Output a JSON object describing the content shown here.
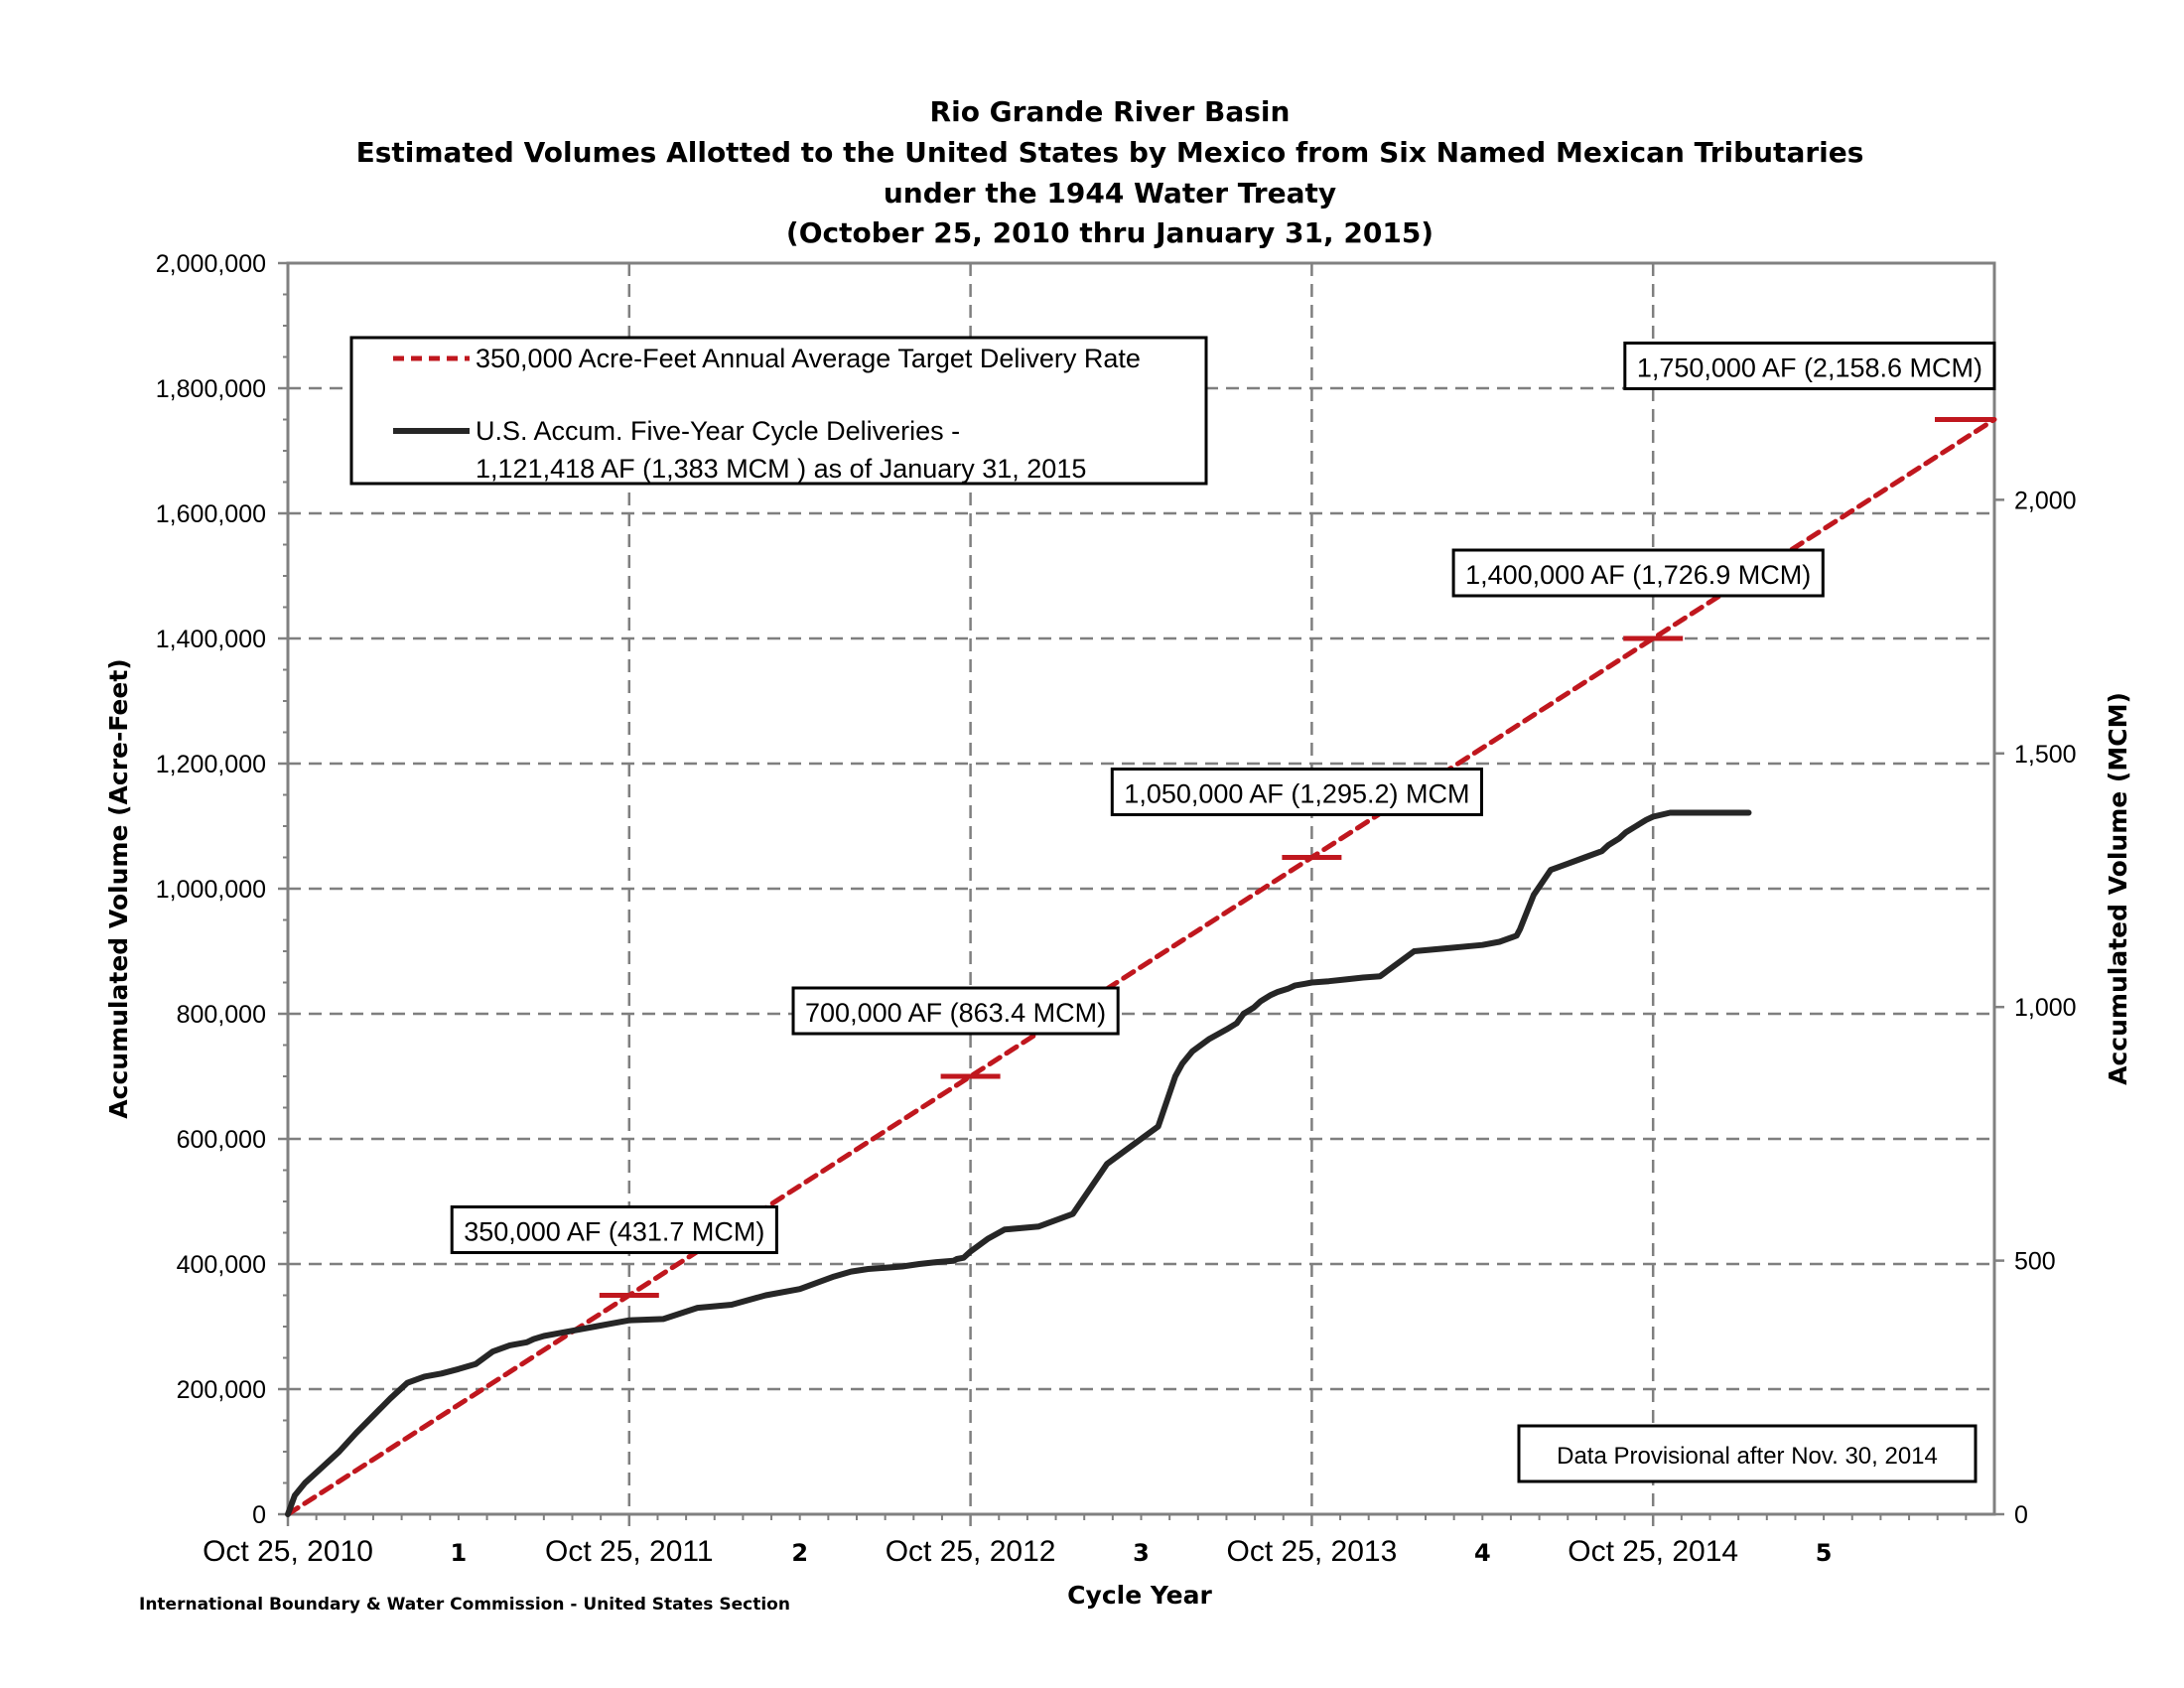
{
  "chart_data": {
    "type": "line",
    "title": [
      "Rio Grande River Basin",
      "Estimated Volumes Allotted to the United States by Mexico from Six Named Mexican Tributaries",
      "under the 1944 Water Treaty",
      "(October 25, 2010 thru January 31, 2015)"
    ],
    "xlabel": "Cycle Year",
    "ylabel": "Accumulated Volume (Acre-Feet)",
    "ylabel_right": "Accumulated Volume (MCM)",
    "ylim": [
      0,
      2000000
    ],
    "yticks": [
      "0",
      "200,000",
      "400,000",
      "600,000",
      "800,000",
      "1,000,000",
      "1,200,000",
      "1,400,000",
      "1,600,000",
      "1,800,000",
      "2,000,000"
    ],
    "ylim_right": [
      0,
      2466.6
    ],
    "yticks_right": [
      {
        "v": 0,
        "label": "0"
      },
      {
        "v": 500,
        "label": "500"
      },
      {
        "v": 1000,
        "label": "1,000"
      },
      {
        "v": 1500,
        "label": "1,500"
      },
      {
        "v": 2000,
        "label": "2,000"
      }
    ],
    "xlim": [
      0,
      5
    ],
    "xticks": [
      {
        "x": 0,
        "label": "Oct 25, 2010"
      },
      {
        "x": 1,
        "label": "Oct 25, 2011"
      },
      {
        "x": 2,
        "label": "Oct 25, 2012"
      },
      {
        "x": 3,
        "label": "Oct 25, 2013"
      },
      {
        "x": 4,
        "label": "Oct 25, 2014"
      }
    ],
    "cycle_labels": [
      {
        "x": 0.5,
        "label": "1"
      },
      {
        "x": 1.5,
        "label": "2"
      },
      {
        "x": 2.5,
        "label": "3"
      },
      {
        "x": 3.5,
        "label": "4"
      },
      {
        "x": 4.5,
        "label": "5"
      }
    ],
    "grid": true,
    "legend": {
      "placement": "top-left",
      "entries": [
        "350,000 Acre-Feet Annual Average Target Delivery Rate",
        "U.S. Accum. Five-Year Cycle Deliveries -",
        "1,121,418 AF (1,383 MCM ) as of January 31, 2015"
      ]
    },
    "series": [
      {
        "name": "350,000 Acre-Feet Annual Average Target Delivery Rate",
        "style": "dashed",
        "color": "#c0171e",
        "x": [
          0,
          5
        ],
        "y": [
          0,
          1750000
        ]
      },
      {
        "name": "U.S. Accum. Five-Year Cycle Deliveries",
        "style": "solid",
        "color": "#262626",
        "x": [
          0,
          0.02,
          0.05,
          0.1,
          0.15,
          0.2,
          0.3,
          0.35,
          0.4,
          0.45,
          0.5,
          0.55,
          0.6,
          0.65,
          0.7,
          0.72,
          0.75,
          0.8,
          0.85,
          0.9,
          0.95,
          1.0,
          1.1,
          1.2,
          1.3,
          1.4,
          1.5,
          1.6,
          1.65,
          1.7,
          1.8,
          1.85,
          1.9,
          1.95,
          1.96,
          1.98,
          2.0,
          2.05,
          2.1,
          2.2,
          2.3,
          2.4,
          2.5,
          2.55,
          2.6,
          2.62,
          2.65,
          2.7,
          2.75,
          2.78,
          2.8,
          2.83,
          2.85,
          2.88,
          2.9,
          2.93,
          2.95,
          2.98,
          3.0,
          3.05,
          3.1,
          3.15,
          3.2,
          3.3,
          3.4,
          3.5,
          3.55,
          3.6,
          3.61,
          3.65,
          3.7,
          3.75,
          3.8,
          3.85,
          3.87,
          3.9,
          3.92,
          3.95,
          3.98,
          4.0,
          4.05,
          4.1,
          4.15,
          4.2,
          4.25,
          4.28
        ],
        "y": [
          0,
          30000,
          50000,
          75000,
          100000,
          130000,
          185000,
          210000,
          220000,
          225000,
          232000,
          240000,
          260000,
          270000,
          275000,
          280000,
          285000,
          290000,
          295000,
          300000,
          305000,
          310000,
          312000,
          330000,
          335000,
          350000,
          360000,
          380000,
          388000,
          392000,
          396000,
          400000,
          403000,
          405000,
          408000,
          410000,
          420000,
          440000,
          455000,
          460000,
          480000,
          560000,
          600000,
          620000,
          700000,
          720000,
          740000,
          760000,
          775000,
          785000,
          800000,
          810000,
          820000,
          830000,
          835000,
          840000,
          845000,
          848000,
          850000,
          852000,
          855000,
          858000,
          860000,
          900000,
          905000,
          910000,
          915000,
          925000,
          935000,
          990000,
          1030000,
          1040000,
          1050000,
          1060000,
          1070000,
          1080000,
          1090000,
          1100000,
          1110000,
          1115000,
          1121418,
          1121418,
          1121418,
          1121418,
          1121418,
          1121418
        ]
      }
    ],
    "targets": [
      {
        "x": 1,
        "y": 350000,
        "label": "350,000 AF (431.7 MCM)"
      },
      {
        "x": 2,
        "y": 700000,
        "label": "700,000 AF (863.4 MCM)"
      },
      {
        "x": 3,
        "y": 1050000,
        "label": "1,050,000 AF (1,295.2) MCM"
      },
      {
        "x": 4,
        "y": 1400000,
        "label": "1,400,000  AF (1,726.9 MCM)"
      },
      {
        "x": 5,
        "y": 1750000,
        "label": "1,750,000 AF (2,158.6 MCM)"
      }
    ],
    "annotation": "Data Provisional after Nov. 30, 2014"
  },
  "footer": "International Boundary & Water Commission - United States Section",
  "colors": {
    "target": "#c0171e",
    "actual": "#262626",
    "grid": "#7f7f7f",
    "axis": "#808080"
  }
}
